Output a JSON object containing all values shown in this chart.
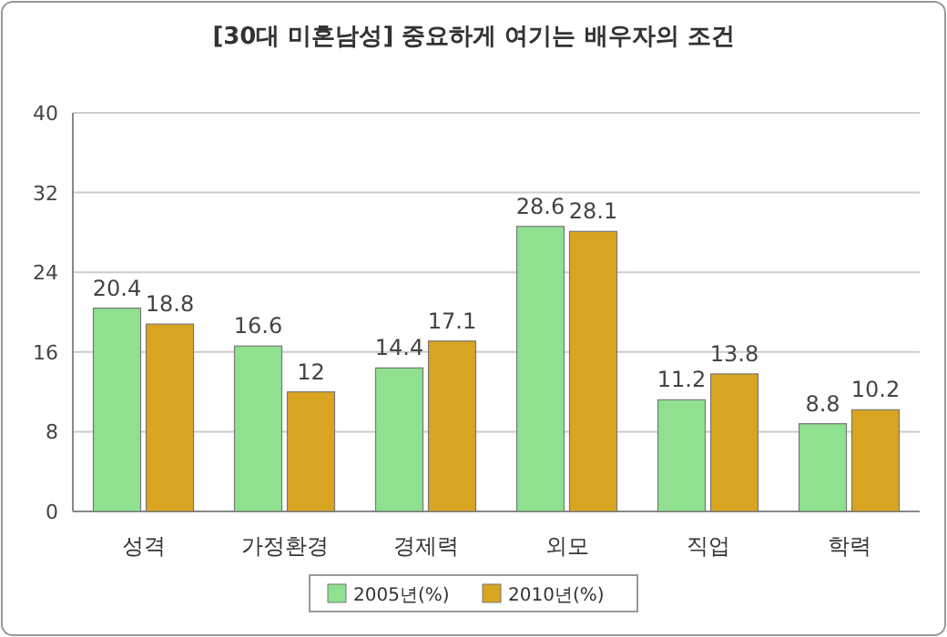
{
  "chart_data": {
    "type": "bar",
    "title": "[30대 미혼남성] 중요하게 여기는 배우자의 조건",
    "categories": [
      "성격",
      "가정환경",
      "경제력",
      "외모",
      "직업",
      "학력"
    ],
    "series": [
      {
        "name": "2005년(%)",
        "color": "#8fe08f",
        "values": [
          20.4,
          16.6,
          14.4,
          28.6,
          11.2,
          8.8
        ]
      },
      {
        "name": "2010년(%)",
        "color": "#d9a520",
        "values": [
          18.8,
          12,
          17.1,
          28.1,
          13.8,
          10.2
        ]
      }
    ],
    "ylim": [
      0,
      40
    ],
    "yticks": [
      0,
      8,
      16,
      24,
      32,
      40
    ],
    "grid": "y",
    "legend": "bottom",
    "data_labels": true
  }
}
